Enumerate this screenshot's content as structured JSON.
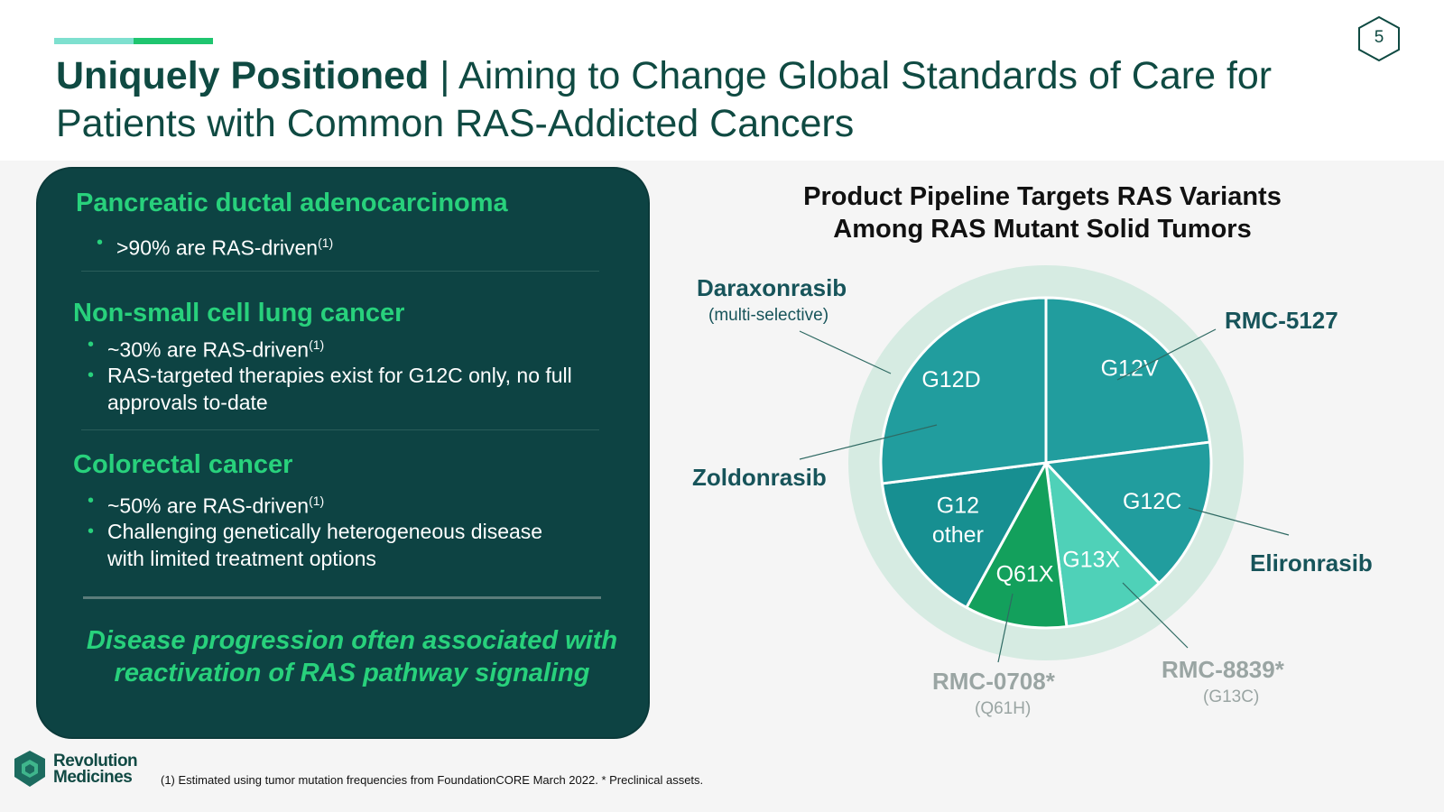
{
  "page_number": "5",
  "title": {
    "strong": "Uniquely Positioned",
    "separator": " | ",
    "rest": "Aiming to Change Global Standards of Care for Patients with Common RAS-Addicted Cancers"
  },
  "left_panel": {
    "sections": [
      {
        "title": "Pancreatic ductal adenocarcinoma",
        "bullets": [
          {
            "text": ">90% are RAS-driven",
            "ref": "(1)"
          }
        ]
      },
      {
        "title": "Non-small cell lung cancer",
        "bullets": [
          {
            "text": "~30% are RAS-driven",
            "ref": "(1)"
          },
          {
            "text_line1": "RAS-targeted therapies exist for G12C only, no full",
            "text_line2": "approvals to-date"
          }
        ]
      },
      {
        "title": "Colorectal cancer",
        "bullets": [
          {
            "text": "~50% are RAS-driven",
            "ref": "(1)"
          },
          {
            "text_line1": "Challenging genetically heterogeneous disease",
            "text_line2": "with limited treatment options"
          }
        ]
      }
    ],
    "callout_line1": "Disease progression often associated with",
    "callout_line2": "reactivation of RAS pathway signaling"
  },
  "chart_data": {
    "type": "pie",
    "title_line1": "Product Pipeline Targets RAS Variants",
    "title_line2": "Among RAS Mutant Solid Tumors",
    "slices": [
      {
        "label": "G12V",
        "value": 23,
        "color": "#219d9e"
      },
      {
        "label": "G12C",
        "value": 15,
        "color": "#219d9e"
      },
      {
        "label": "G13X",
        "value": 10,
        "color": "#4fd1b8"
      },
      {
        "label": "Q61X",
        "value": 10,
        "color": "#13a05c"
      },
      {
        "label": "G12 other",
        "value": 15,
        "color": "#178f91"
      },
      {
        "label": "G12D",
        "value": 27,
        "color": "#219d9e"
      }
    ],
    "ring_color": "#d6ebe2",
    "drugs": [
      {
        "name": "Daraxonrasib",
        "sub": "(multi-selective)"
      },
      {
        "name": "Zoldonrasib"
      },
      {
        "name": "RMC-5127"
      },
      {
        "name": "Elironrasib"
      },
      {
        "name": "RMC-8839*",
        "sub": "(G13C)"
      },
      {
        "name": "RMC-0708*",
        "sub": "(Q61H)"
      }
    ]
  },
  "logo": {
    "line1": "Revolution",
    "line2": "Medicines"
  },
  "footnote": "(1) Estimated using tumor mutation frequencies from FoundationCORE March 2022. * Preclinical assets."
}
